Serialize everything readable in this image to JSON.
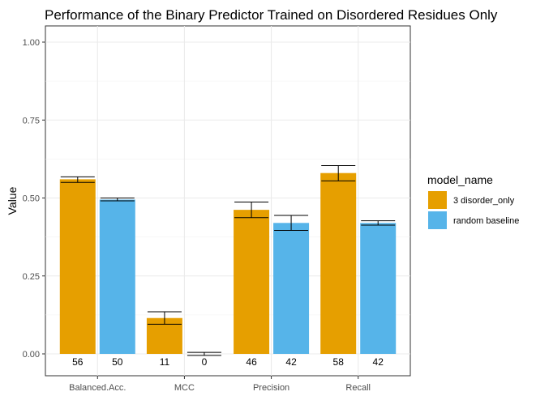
{
  "chart_data": {
    "type": "bar",
    "title": "Performance of the Binary Predictor Trained on Disordered Residues Only",
    "xlabel": "",
    "ylabel": "Value",
    "categories": [
      "Balanced.Acc.",
      "MCC",
      "Precision",
      "Recall"
    ],
    "ylim": [
      0,
      1
    ],
    "yticks": [
      "0.00",
      "0.25",
      "0.50",
      "0.75",
      "1.00"
    ],
    "grid": true,
    "legend": {
      "title": "model_name",
      "position": "right"
    },
    "series": [
      {
        "name": "3 disorder_only",
        "color": "#E69F00",
        "values": [
          0.56,
          0.115,
          0.462,
          0.58
        ],
        "error_low": [
          0.55,
          0.095,
          0.437,
          0.555
        ],
        "error_high": [
          0.568,
          0.135,
          0.487,
          0.604
        ],
        "labels": [
          "56",
          "11",
          "46",
          "58"
        ]
      },
      {
        "name": "random baseline",
        "color": "#56B4E9",
        "values": [
          0.495,
          0.0,
          0.42,
          0.42
        ],
        "error_low": [
          0.491,
          -0.005,
          0.396,
          0.413
        ],
        "error_high": [
          0.5,
          0.005,
          0.444,
          0.427
        ],
        "labels": [
          "50",
          "0",
          "42",
          "42"
        ]
      }
    ]
  }
}
